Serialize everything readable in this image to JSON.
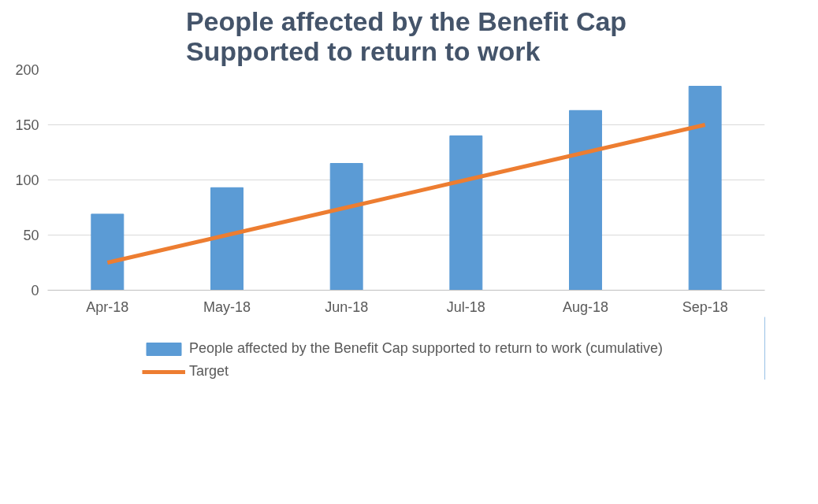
{
  "chart_data": {
    "type": "bar",
    "title": "People affected by the Benefit Cap\nSupported to return to work",
    "categories": [
      "Apr-18",
      "May-18",
      "Jun-18",
      "Jul-18",
      "Aug-18",
      "Sep-18"
    ],
    "series": [
      {
        "name": "People affected by the Benefit Cap supported to return to work (cumulative)",
        "color": "#5b9bd5",
        "values": [
          69,
          93,
          115,
          140,
          163,
          185
        ]
      },
      {
        "name": "Target",
        "type": "line",
        "color": "#ed7d31",
        "values": [
          25,
          50,
          75,
          100,
          125,
          150
        ]
      }
    ],
    "ylim": [
      0,
      200
    ],
    "yticks": [
      0,
      50,
      100,
      150,
      200
    ],
    "grid": "y",
    "legend": "bottom",
    "marker": "none",
    "line_style": "solid"
  }
}
